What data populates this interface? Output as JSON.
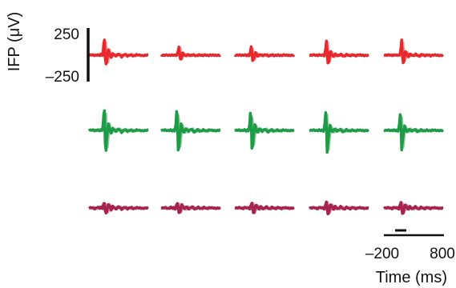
{
  "chart_data": {
    "type": "line",
    "title": "",
    "ylabel": "IFP (μV)",
    "xlabel": "Time (ms)",
    "y_scale_bar": {
      "top_label": "250",
      "bottom_label": "–250",
      "range": [
        -250,
        250
      ]
    },
    "x_scale_bar": {
      "left_label": "–200",
      "right_label": "800",
      "range": [
        -200,
        800
      ],
      "stimulus_marker": [
        0,
        100
      ]
    },
    "layout": {
      "rows": 3,
      "cols": 5
    },
    "rows": [
      {
        "color": "#e8282d",
        "light_color": "#f3a3a3",
        "amplitude": 1.0,
        "shape": [
          [
            -200,
            0
          ],
          [
            -150,
            4
          ],
          [
            -100,
            -3
          ],
          [
            -50,
            5
          ],
          [
            -20,
            -4
          ],
          [
            0,
            8
          ],
          [
            20,
            -10
          ],
          [
            40,
            40
          ],
          [
            60,
            175
          ],
          [
            80,
            -90
          ],
          [
            100,
            -70
          ],
          [
            125,
            55
          ],
          [
            150,
            5
          ],
          [
            175,
            -20
          ],
          [
            200,
            15
          ],
          [
            250,
            -8
          ],
          [
            300,
            12
          ],
          [
            350,
            -15
          ],
          [
            400,
            10
          ],
          [
            450,
            -8
          ],
          [
            500,
            6
          ],
          [
            550,
            -8
          ],
          [
            600,
            5
          ],
          [
            700,
            -4
          ],
          [
            800,
            3
          ]
        ]
      },
      {
        "color": "#1e9b47",
        "light_color": "#8fd0a1",
        "amplitude": 1.0,
        "shape": [
          [
            -200,
            0
          ],
          [
            -150,
            5
          ],
          [
            -100,
            -4
          ],
          [
            -50,
            6
          ],
          [
            -20,
            -5
          ],
          [
            0,
            6
          ],
          [
            20,
            -8
          ],
          [
            40,
            60
          ],
          [
            60,
            245
          ],
          [
            80,
            -245
          ],
          [
            100,
            -90
          ],
          [
            125,
            65
          ],
          [
            150,
            5
          ],
          [
            175,
            -25
          ],
          [
            200,
            20
          ],
          [
            250,
            -10
          ],
          [
            300,
            15
          ],
          [
            350,
            -18
          ],
          [
            400,
            10
          ],
          [
            450,
            -10
          ],
          [
            500,
            6
          ],
          [
            550,
            -8
          ],
          [
            600,
            5
          ],
          [
            700,
            -4
          ],
          [
            800,
            3
          ]
        ]
      },
      {
        "color": "#a6234f",
        "light_color": "#d89ab0",
        "amplitude": 1.0,
        "shape": [
          [
            -200,
            0
          ],
          [
            -150,
            5
          ],
          [
            -100,
            -8
          ],
          [
            -50,
            10
          ],
          [
            -20,
            -6
          ],
          [
            0,
            10
          ],
          [
            20,
            -14
          ],
          [
            40,
            30
          ],
          [
            60,
            60
          ],
          [
            80,
            -55
          ],
          [
            100,
            -45
          ],
          [
            125,
            40
          ],
          [
            150,
            15
          ],
          [
            175,
            -20
          ],
          [
            200,
            18
          ],
          [
            250,
            -12
          ],
          [
            300,
            16
          ],
          [
            350,
            -14
          ],
          [
            400,
            10
          ],
          [
            450,
            -10
          ],
          [
            500,
            8
          ],
          [
            550,
            -8
          ],
          [
            600,
            5
          ],
          [
            700,
            -4
          ],
          [
            800,
            3
          ]
        ]
      }
    ],
    "cells": [
      [
        {
          "gain": 1.0,
          "shift": 0
        },
        {
          "gain": 0.45,
          "shift": 40
        },
        {
          "gain": 0.55,
          "shift": 20
        },
        {
          "gain": 0.85,
          "shift": 30
        },
        {
          "gain": 0.8,
          "shift": 40
        }
      ],
      [
        {
          "gain": 1.0,
          "shift": 0
        },
        {
          "gain": 1.0,
          "shift": 10
        },
        {
          "gain": 0.9,
          "shift": 10
        },
        {
          "gain": 0.85,
          "shift": 20
        },
        {
          "gain": 0.75,
          "shift": 20
        }
      ],
      [
        {
          "gain": 0.9,
          "shift": 0
        },
        {
          "gain": 0.85,
          "shift": 20
        },
        {
          "gain": 0.85,
          "shift": 30
        },
        {
          "gain": 1.0,
          "shift": 30
        },
        {
          "gain": 0.95,
          "shift": 30
        }
      ]
    ]
  }
}
